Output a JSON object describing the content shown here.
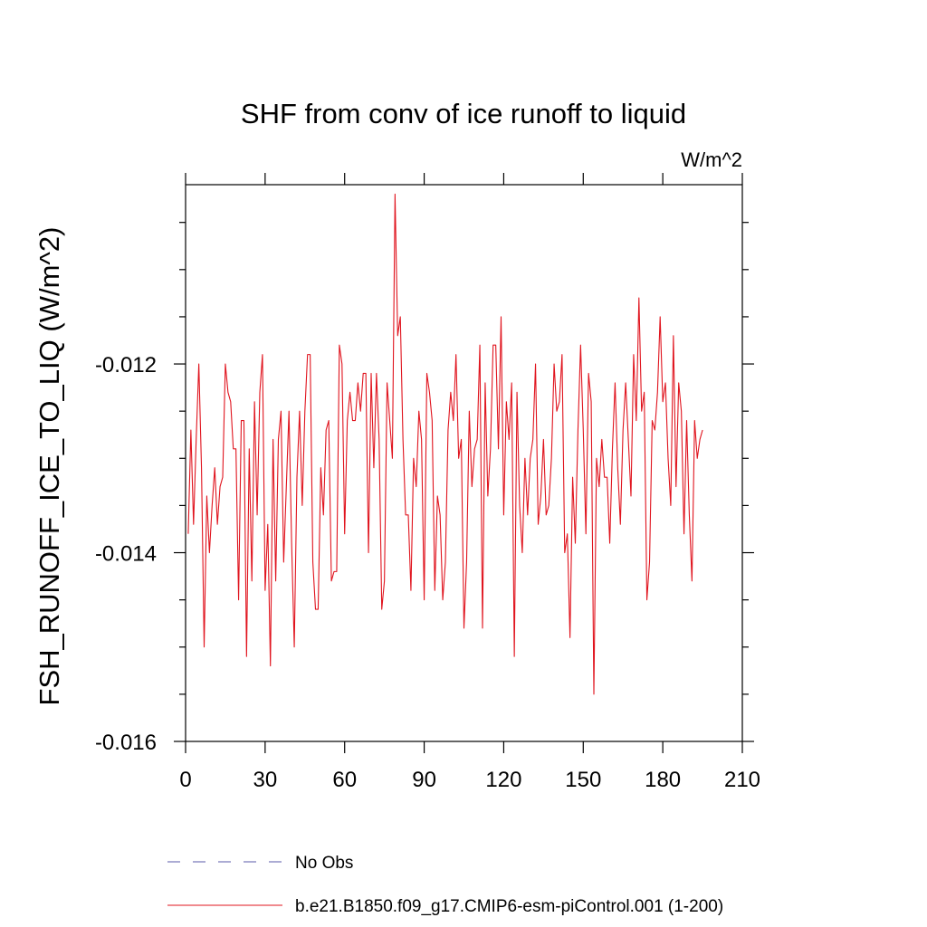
{
  "chart_data": {
    "type": "line",
    "title": "SHF from conv of ice runoff to liquid",
    "units_label": "W/m^2",
    "ylabel": "FSH_RUNOFF_ICE_TO_LIQ  (W/m^2)",
    "xlabel": "",
    "xlim": [
      0,
      210
    ],
    "ylim": [
      -0.016,
      -0.0101
    ],
    "x_ticks": [
      0,
      30,
      60,
      90,
      120,
      150,
      180,
      210
    ],
    "x_tick_labels": [
      "0",
      "30",
      "60",
      "90",
      "120",
      "150",
      "180",
      "210"
    ],
    "y_ticks": [
      -0.016,
      -0.014,
      -0.012
    ],
    "y_tick_labels": [
      "-0.016",
      "-0.014",
      "-0.012"
    ],
    "x_minor_step": 0,
    "y_minor_step": 0.0005,
    "grid": false,
    "legend": [
      {
        "label": "No Obs",
        "color": "#5a5aa8",
        "style": "dashed"
      },
      {
        "label": "b.e21.B1850.f09_g17.CMIP6-esm-piControl.001 (1-200)",
        "color": "#e0141e",
        "style": "solid"
      }
    ],
    "series": [
      {
        "name": "b.e21.B1850.f09_g17.CMIP6-esm-piControl.001 (1-200)",
        "color": "#e0141e",
        "x_start": 1,
        "x_step": 1,
        "values": [
          -0.0138,
          -0.0127,
          -0.0137,
          -0.0128,
          -0.012,
          -0.0131,
          -0.015,
          -0.0134,
          -0.014,
          -0.0135,
          -0.0131,
          -0.0137,
          -0.0133,
          -0.0132,
          -0.012,
          -0.0123,
          -0.0124,
          -0.0129,
          -0.0129,
          -0.0145,
          -0.0126,
          -0.0126,
          -0.0151,
          -0.0129,
          -0.0143,
          -0.0124,
          -0.0136,
          -0.0123,
          -0.0119,
          -0.0144,
          -0.0137,
          -0.0152,
          -0.0128,
          -0.0143,
          -0.0128,
          -0.0125,
          -0.0141,
          -0.0133,
          -0.0125,
          -0.0139,
          -0.015,
          -0.0132,
          -0.0125,
          -0.0135,
          -0.0125,
          -0.0119,
          -0.0119,
          -0.0141,
          -0.0146,
          -0.0146,
          -0.0131,
          -0.0136,
          -0.0127,
          -0.0126,
          -0.0143,
          -0.0142,
          -0.0142,
          -0.0118,
          -0.012,
          -0.0138,
          -0.0126,
          -0.0123,
          -0.0126,
          -0.0126,
          -0.0122,
          -0.0125,
          -0.0121,
          -0.0121,
          -0.014,
          -0.0121,
          -0.0131,
          -0.0121,
          -0.0128,
          -0.0146,
          -0.0143,
          -0.0122,
          -0.0126,
          -0.013,
          -0.0102,
          -0.0117,
          -0.0115,
          -0.0128,
          -0.0136,
          -0.0136,
          -0.0144,
          -0.013,
          -0.0133,
          -0.0125,
          -0.0128,
          -0.0145,
          -0.0121,
          -0.0123,
          -0.0126,
          -0.0144,
          -0.0134,
          -0.0136,
          -0.0145,
          -0.0141,
          -0.0127,
          -0.0123,
          -0.0126,
          -0.0119,
          -0.013,
          -0.0128,
          -0.0148,
          -0.0141,
          -0.0125,
          -0.0133,
          -0.0129,
          -0.0128,
          -0.0118,
          -0.0148,
          -0.0122,
          -0.0134,
          -0.0129,
          -0.0118,
          -0.0118,
          -0.0129,
          -0.0115,
          -0.0136,
          -0.0124,
          -0.0128,
          -0.0122,
          -0.0151,
          -0.0123,
          -0.0135,
          -0.014,
          -0.013,
          -0.0136,
          -0.013,
          -0.0128,
          -0.012,
          -0.0137,
          -0.0134,
          -0.0128,
          -0.0136,
          -0.0135,
          -0.013,
          -0.012,
          -0.0125,
          -0.0124,
          -0.0119,
          -0.014,
          -0.0138,
          -0.0149,
          -0.0132,
          -0.0139,
          -0.0127,
          -0.0118,
          -0.0127,
          -0.0138,
          -0.0121,
          -0.0124,
          -0.0155,
          -0.013,
          -0.0133,
          -0.0128,
          -0.0132,
          -0.0132,
          -0.0139,
          -0.0129,
          -0.0122,
          -0.0131,
          -0.0137,
          -0.0127,
          -0.0122,
          -0.0128,
          -0.0134,
          -0.0119,
          -0.0126,
          -0.0113,
          -0.0125,
          -0.0123,
          -0.0145,
          -0.0141,
          -0.0126,
          -0.0127,
          -0.0123,
          -0.0115,
          -0.0124,
          -0.0122,
          -0.013,
          -0.0135,
          -0.0117,
          -0.0133,
          -0.0122,
          -0.0125,
          -0.0138,
          -0.0126,
          -0.0136,
          -0.0143,
          -0.0126,
          -0.013,
          -0.0128,
          -0.0127
        ]
      }
    ]
  }
}
